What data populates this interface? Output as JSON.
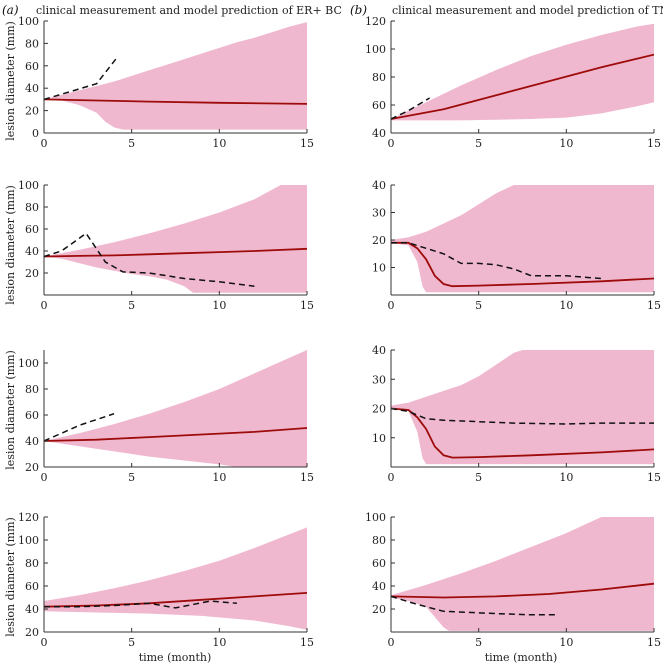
{
  "colors": {
    "band": "#f0b8cf",
    "model": "#9e0b0b",
    "measured": "#111111",
    "axis": "#333333"
  },
  "figure": {
    "panel_a_label": "(a)",
    "panel_a_title": "clinical measurement and model prediction of ER+ BC",
    "panel_b_label": "(b)",
    "panel_b_title": "clinical measurement and model prediction of TNBC",
    "ylabel": "lesion diameter (mm)",
    "xlabel": "time (month)"
  },
  "chart_data": [
    {
      "id": "a1",
      "column": "a",
      "row": 0,
      "type": "line",
      "xlim": [
        0,
        15
      ],
      "ylim": [
        0,
        100
      ],
      "xticks": [
        "0",
        "5",
        "10",
        "15"
      ],
      "yticks": [
        "0",
        "20",
        "40",
        "60",
        "80",
        "100"
      ],
      "band_upper": [
        [
          0,
          30
        ],
        [
          1,
          34
        ],
        [
          2,
          38
        ],
        [
          3,
          42
        ],
        [
          4,
          46
        ],
        [
          5,
          51
        ],
        [
          6,
          56
        ],
        [
          7,
          61
        ],
        [
          8,
          66
        ],
        [
          9,
          71
        ],
        [
          10,
          76
        ],
        [
          11,
          81
        ],
        [
          12,
          85
        ],
        [
          13,
          90
        ],
        [
          14,
          95
        ],
        [
          15,
          99
        ]
      ],
      "band_lower": [
        [
          0,
          30
        ],
        [
          1,
          29
        ],
        [
          2,
          25
        ],
        [
          3,
          18
        ],
        [
          3.5,
          10
        ],
        [
          4,
          5
        ],
        [
          4.5,
          3
        ],
        [
          15,
          3
        ]
      ],
      "model": [
        [
          0,
          30
        ],
        [
          3,
          29
        ],
        [
          6,
          28
        ],
        [
          10,
          27
        ],
        [
          15,
          26
        ]
      ],
      "measured": [
        [
          0,
          30
        ],
        [
          1.5,
          37
        ],
        [
          3,
          44
        ],
        [
          4.2,
          68
        ]
      ]
    },
    {
      "id": "a2",
      "column": "a",
      "row": 1,
      "type": "line",
      "xlim": [
        0,
        15
      ],
      "ylim": [
        0,
        100
      ],
      "xticks": [
        "0",
        "5",
        "10",
        "15"
      ],
      "yticks": [
        "20",
        "40",
        "60",
        "80",
        "100"
      ],
      "band_upper": [
        [
          0,
          35
        ],
        [
          2,
          41
        ],
        [
          4,
          48
        ],
        [
          6,
          56
        ],
        [
          8,
          65
        ],
        [
          10,
          75
        ],
        [
          12,
          87
        ],
        [
          13.5,
          100
        ],
        [
          15,
          100
        ]
      ],
      "band_lower": [
        [
          0,
          35
        ],
        [
          1,
          33
        ],
        [
          2,
          29
        ],
        [
          3,
          25
        ],
        [
          4,
          22
        ],
        [
          5,
          19
        ],
        [
          6,
          17
        ],
        [
          7,
          14
        ],
        [
          8,
          8
        ],
        [
          8.5,
          2
        ],
        [
          15,
          2
        ]
      ],
      "model": [
        [
          0,
          35
        ],
        [
          2,
          35.5
        ],
        [
          4,
          36
        ],
        [
          6,
          37
        ],
        [
          8,
          38
        ],
        [
          10,
          39
        ],
        [
          12,
          40
        ],
        [
          15,
          42
        ]
      ],
      "measured": [
        [
          0,
          35
        ],
        [
          1,
          40
        ],
        [
          2.4,
          56
        ],
        [
          3.5,
          30
        ],
        [
          4.5,
          21
        ],
        [
          6,
          20
        ],
        [
          8,
          15
        ],
        [
          10,
          12
        ],
        [
          12,
          8
        ]
      ]
    },
    {
      "id": "a3",
      "column": "a",
      "row": 2,
      "type": "line",
      "xlim": [
        0,
        15
      ],
      "ylim": [
        20,
        110
      ],
      "xticks": [
        "0",
        "5",
        "10",
        "15"
      ],
      "yticks": [
        "20",
        "40",
        "60",
        "80",
        "100"
      ],
      "band_upper": [
        [
          0,
          40
        ],
        [
          2,
          46
        ],
        [
          4,
          53
        ],
        [
          6,
          61
        ],
        [
          8,
          70
        ],
        [
          10,
          80
        ],
        [
          12,
          92
        ],
        [
          14,
          104
        ],
        [
          15,
          110
        ]
      ],
      "band_lower": [
        [
          0,
          40
        ],
        [
          2,
          36
        ],
        [
          4,
          32
        ],
        [
          6,
          28
        ],
        [
          8,
          25
        ],
        [
          10,
          22
        ],
        [
          11,
          20
        ],
        [
          15,
          20
        ]
      ],
      "model": [
        [
          0,
          40
        ],
        [
          3,
          41
        ],
        [
          6,
          43
        ],
        [
          9,
          45
        ],
        [
          12,
          47
        ],
        [
          15,
          50
        ]
      ],
      "measured": [
        [
          0,
          40
        ],
        [
          2,
          52
        ],
        [
          4,
          61
        ]
      ]
    },
    {
      "id": "a4",
      "column": "a",
      "row": 3,
      "type": "line",
      "xlim": [
        0,
        15
      ],
      "ylim": [
        20,
        120
      ],
      "xticks": [
        "0",
        "5",
        "10",
        "15"
      ],
      "yticks": [
        "20",
        "40",
        "60",
        "80",
        "100",
        "120"
      ],
      "band_upper": [
        [
          0,
          47
        ],
        [
          2,
          52
        ],
        [
          4,
          58
        ],
        [
          6,
          65
        ],
        [
          8,
          73
        ],
        [
          10,
          82
        ],
        [
          12,
          93
        ],
        [
          14,
          105
        ],
        [
          15,
          111
        ]
      ],
      "band_lower": [
        [
          0,
          38
        ],
        [
          3,
          37
        ],
        [
          6,
          36
        ],
        [
          9,
          34
        ],
        [
          12,
          30
        ],
        [
          14,
          25
        ],
        [
          15,
          22
        ]
      ],
      "model": [
        [
          0,
          42
        ],
        [
          3,
          43
        ],
        [
          6,
          45
        ],
        [
          9,
          48
        ],
        [
          12,
          51
        ],
        [
          15,
          54
        ]
      ],
      "measured": [
        [
          0,
          42
        ],
        [
          2,
          42
        ],
        [
          4,
          43
        ],
        [
          6,
          45
        ],
        [
          7.5,
          41
        ],
        [
          9.5,
          47
        ],
        [
          11,
          45
        ]
      ]
    },
    {
      "id": "b1",
      "column": "b",
      "row": 0,
      "type": "line",
      "xlim": [
        0,
        15
      ],
      "ylim": [
        40,
        120
      ],
      "xticks": [
        "0",
        "5",
        "10",
        "15"
      ],
      "yticks": [
        "40",
        "60",
        "80",
        "100",
        "120"
      ],
      "band_upper": [
        [
          0,
          50
        ],
        [
          2,
          62
        ],
        [
          4,
          74
        ],
        [
          6,
          85
        ],
        [
          8,
          95
        ],
        [
          10,
          103
        ],
        [
          12,
          110
        ],
        [
          14,
          116
        ],
        [
          15,
          118
        ]
      ],
      "band_lower": [
        [
          0,
          49
        ],
        [
          4,
          49
        ],
        [
          8,
          50
        ],
        [
          10,
          51
        ],
        [
          12,
          54
        ],
        [
          14,
          59
        ],
        [
          15,
          62
        ]
      ],
      "model": [
        [
          0,
          50
        ],
        [
          3,
          57
        ],
        [
          6,
          67
        ],
        [
          9,
          77
        ],
        [
          12,
          87
        ],
        [
          15,
          96
        ]
      ],
      "measured": [
        [
          0,
          50
        ],
        [
          1,
          56
        ],
        [
          2.2,
          65
        ]
      ]
    },
    {
      "id": "b2",
      "column": "b",
      "row": 1,
      "type": "line",
      "xlim": [
        0,
        15
      ],
      "ylim": [
        0,
        40
      ],
      "xticks": [
        "0",
        "5",
        "10",
        "15"
      ],
      "yticks": [
        "10",
        "20",
        "30",
        "40"
      ],
      "band_upper": [
        [
          0,
          20
        ],
        [
          1,
          21
        ],
        [
          2,
          23
        ],
        [
          3,
          26
        ],
        [
          4,
          29
        ],
        [
          5,
          33
        ],
        [
          6,
          37
        ],
        [
          7,
          40
        ],
        [
          15,
          40
        ]
      ],
      "band_lower": [
        [
          0,
          19
        ],
        [
          1,
          18
        ],
        [
          1.5,
          12
        ],
        [
          1.8,
          3
        ],
        [
          2,
          1
        ],
        [
          15,
          1
        ]
      ],
      "model": [
        [
          0,
          19
        ],
        [
          1,
          19
        ],
        [
          1.5,
          17
        ],
        [
          2,
          13
        ],
        [
          2.5,
          7
        ],
        [
          3,
          4
        ],
        [
          3.5,
          3.2
        ],
        [
          5,
          3.4
        ],
        [
          8,
          4
        ],
        [
          12,
          5
        ],
        [
          15,
          6
        ]
      ],
      "measured": [
        [
          0,
          19
        ],
        [
          1,
          19
        ],
        [
          2,
          17
        ],
        [
          3,
          15
        ],
        [
          4,
          11.5
        ],
        [
          5,
          11.5
        ],
        [
          6,
          11
        ],
        [
          7,
          9.5
        ],
        [
          8,
          7
        ],
        [
          10,
          7
        ],
        [
          12,
          6
        ]
      ]
    },
    {
      "id": "b3",
      "column": "b",
      "row": 2,
      "type": "line",
      "xlim": [
        0,
        15
      ],
      "ylim": [
        0,
        40
      ],
      "xticks": [
        "0",
        "5",
        "10",
        "15"
      ],
      "yticks": [
        "10",
        "20",
        "30",
        "40"
      ],
      "band_upper": [
        [
          0,
          21
        ],
        [
          1,
          22
        ],
        [
          2,
          24
        ],
        [
          3,
          26
        ],
        [
          4,
          28
        ],
        [
          5,
          31
        ],
        [
          6,
          35
        ],
        [
          7,
          39
        ],
        [
          7.5,
          40
        ],
        [
          15,
          40
        ]
      ],
      "band_lower": [
        [
          0,
          20
        ],
        [
          1,
          19
        ],
        [
          1.5,
          12
        ],
        [
          1.8,
          3
        ],
        [
          2,
          1
        ],
        [
          15,
          1
        ]
      ],
      "model": [
        [
          0,
          20
        ],
        [
          1,
          19.5
        ],
        [
          1.5,
          17
        ],
        [
          2,
          13
        ],
        [
          2.5,
          7
        ],
        [
          3,
          4
        ],
        [
          3.5,
          3.2
        ],
        [
          5,
          3.4
        ],
        [
          8,
          4
        ],
        [
          12,
          5
        ],
        [
          15,
          6
        ]
      ],
      "measured": [
        [
          0,
          20
        ],
        [
          1,
          19
        ],
        [
          2,
          16.5
        ],
        [
          3,
          16
        ],
        [
          5,
          15.5
        ],
        [
          7,
          15
        ],
        [
          10,
          14.7
        ],
        [
          12,
          15
        ],
        [
          15,
          15
        ]
      ]
    },
    {
      "id": "b4",
      "column": "b",
      "row": 3,
      "type": "line",
      "xlim": [
        0,
        15
      ],
      "ylim": [
        0,
        100
      ],
      "xticks": [
        "0",
        "5",
        "10",
        "15"
      ],
      "yticks": [
        "20",
        "40",
        "60",
        "80",
        "100"
      ],
      "band_upper": [
        [
          0,
          32
        ],
        [
          2,
          41
        ],
        [
          4,
          51
        ],
        [
          6,
          62
        ],
        [
          8,
          74
        ],
        [
          10,
          86
        ],
        [
          11,
          93
        ],
        [
          12,
          100
        ],
        [
          15,
          100
        ]
      ],
      "band_lower": [
        [
          0,
          30
        ],
        [
          1,
          27
        ],
        [
          2,
          22
        ],
        [
          2.5,
          13
        ],
        [
          3,
          4
        ],
        [
          3.3,
          1
        ],
        [
          15,
          1
        ]
      ],
      "model": [
        [
          0,
          31
        ],
        [
          3,
          30
        ],
        [
          6,
          31
        ],
        [
          9,
          33
        ],
        [
          12,
          37
        ],
        [
          15,
          42
        ]
      ],
      "measured": [
        [
          0,
          31
        ],
        [
          1.5,
          24
        ],
        [
          3,
          18
        ],
        [
          6,
          16
        ],
        [
          8,
          15
        ],
        [
          9.5,
          15
        ]
      ]
    }
  ]
}
